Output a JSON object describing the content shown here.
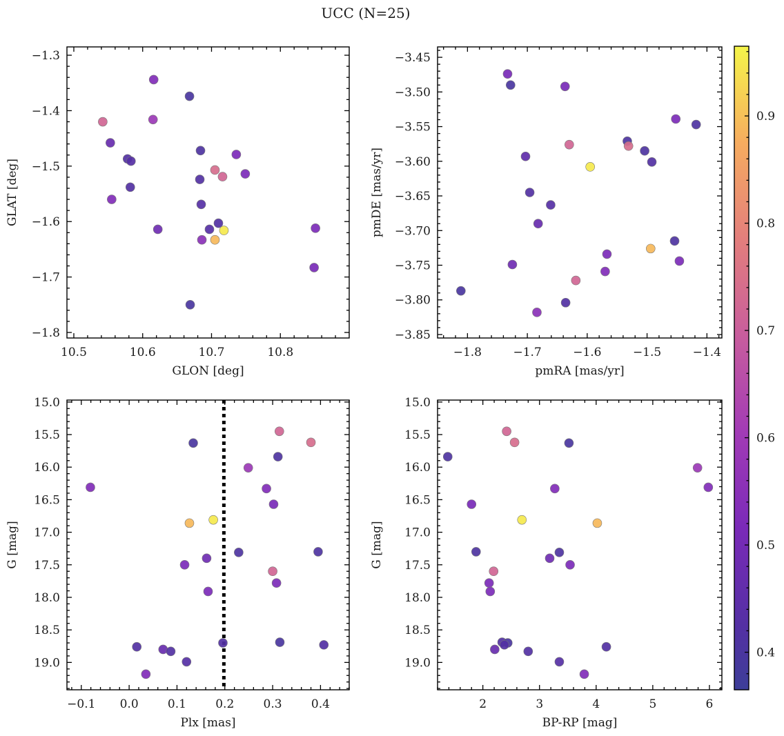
{
  "chart_data": [
    {
      "type": "scatter",
      "panel": "top-left",
      "xlabel": "GLON [deg]",
      "ylabel": "GLAT [deg]",
      "xlim": [
        10.49,
        10.9
      ],
      "ylim": [
        -1.81,
        -1.285
      ],
      "xticks": [
        10.5,
        10.6,
        10.7,
        10.8
      ],
      "xtick_labels": [
        "10.5",
        "10.6",
        "10.7",
        "10.8"
      ],
      "yticks": [
        -1.8,
        -1.7,
        -1.6,
        -1.5,
        -1.4,
        -1.3
      ],
      "ytick_labels": [
        "−1.8",
        "−1.7",
        "−1.6",
        "−1.5",
        "−1.4",
        "−1.3"
      ],
      "points": [
        {
          "x": 10.542,
          "y": -1.42,
          "c": 0.72
        },
        {
          "x": 10.553,
          "y": -1.458,
          "c": 0.47
        },
        {
          "x": 10.555,
          "y": -1.56,
          "c": 0.53
        },
        {
          "x": 10.578,
          "y": -1.487,
          "c": 0.42
        },
        {
          "x": 10.583,
          "y": -1.491,
          "c": 0.43
        },
        {
          "x": 10.582,
          "y": -1.538,
          "c": 0.42
        },
        {
          "x": 10.616,
          "y": -1.344,
          "c": 0.53
        },
        {
          "x": 10.615,
          "y": -1.416,
          "c": 0.59
        },
        {
          "x": 10.622,
          "y": -1.614,
          "c": 0.49
        },
        {
          "x": 10.668,
          "y": -1.374,
          "c": 0.4
        },
        {
          "x": 10.669,
          "y": -1.75,
          "c": 0.4
        },
        {
          "x": 10.684,
          "y": -1.472,
          "c": 0.41
        },
        {
          "x": 10.683,
          "y": -1.524,
          "c": 0.42
        },
        {
          "x": 10.685,
          "y": -1.569,
          "c": 0.43
        },
        {
          "x": 10.686,
          "y": -1.633,
          "c": 0.55
        },
        {
          "x": 10.697,
          "y": -1.614,
          "c": 0.43
        },
        {
          "x": 10.705,
          "y": -1.507,
          "c": 0.74
        },
        {
          "x": 10.716,
          "y": -1.519,
          "c": 0.72
        },
        {
          "x": 10.71,
          "y": -1.603,
          "c": 0.42
        },
        {
          "x": 10.705,
          "y": -1.633,
          "c": 0.89
        },
        {
          "x": 10.718,
          "y": -1.616,
          "c": 0.95
        },
        {
          "x": 10.736,
          "y": -1.479,
          "c": 0.52
        },
        {
          "x": 10.749,
          "y": -1.514,
          "c": 0.52
        },
        {
          "x": 10.851,
          "y": -1.612,
          "c": 0.52
        },
        {
          "x": 10.849,
          "y": -1.683,
          "c": 0.51
        }
      ]
    },
    {
      "type": "scatter",
      "panel": "top-right",
      "xlabel": "pmRA [mas/yr]",
      "ylabel": "pmDE [mas/yr]",
      "xlim": [
        -1.85,
        -1.375
      ],
      "ylim": [
        -3.855,
        -3.435
      ],
      "xticks": [
        -1.8,
        -1.7,
        -1.6,
        -1.5,
        -1.4
      ],
      "xtick_labels": [
        "−1.8",
        "−1.7",
        "−1.6",
        "−1.5",
        "−1.4"
      ],
      "yticks": [
        -3.85,
        -3.8,
        -3.75,
        -3.7,
        -3.65,
        -3.6,
        -3.55,
        -3.5,
        -3.45
      ],
      "ytick_labels": [
        "−3.85",
        "−3.80",
        "−3.75",
        "−3.70",
        "−3.65",
        "−3.60",
        "−3.55",
        "−3.50",
        "−3.45"
      ],
      "points": [
        {
          "x": -1.733,
          "y": -3.474,
          "c": 0.51
        },
        {
          "x": -1.728,
          "y": -3.49,
          "c": 0.4
        },
        {
          "x": -1.637,
          "y": -3.492,
          "c": 0.51
        },
        {
          "x": -1.452,
          "y": -3.539,
          "c": 0.52
        },
        {
          "x": -1.418,
          "y": -3.547,
          "c": 0.41
        },
        {
          "x": -1.533,
          "y": -3.571,
          "c": 0.41
        },
        {
          "x": -1.63,
          "y": -3.576,
          "c": 0.72
        },
        {
          "x": -1.531,
          "y": -3.578,
          "c": 0.74
        },
        {
          "x": -1.504,
          "y": -3.585,
          "c": 0.41
        },
        {
          "x": -1.703,
          "y": -3.593,
          "c": 0.45
        },
        {
          "x": -1.492,
          "y": -3.601,
          "c": 0.42
        },
        {
          "x": -1.595,
          "y": -3.608,
          "c": 0.95
        },
        {
          "x": -1.696,
          "y": -3.645,
          "c": 0.42
        },
        {
          "x": -1.661,
          "y": -3.663,
          "c": 0.43
        },
        {
          "x": -1.682,
          "y": -3.69,
          "c": 0.47
        },
        {
          "x": -1.454,
          "y": -3.715,
          "c": 0.41
        },
        {
          "x": -1.494,
          "y": -3.726,
          "c": 0.89
        },
        {
          "x": -1.567,
          "y": -3.734,
          "c": 0.52
        },
        {
          "x": -1.725,
          "y": -3.749,
          "c": 0.49
        },
        {
          "x": -1.446,
          "y": -3.744,
          "c": 0.52
        },
        {
          "x": -1.57,
          "y": -3.759,
          "c": 0.53
        },
        {
          "x": -1.619,
          "y": -3.772,
          "c": 0.72
        },
        {
          "x": -1.811,
          "y": -3.787,
          "c": 0.4
        },
        {
          "x": -1.636,
          "y": -3.804,
          "c": 0.42
        },
        {
          "x": -1.684,
          "y": -3.818,
          "c": 0.55
        }
      ]
    },
    {
      "type": "scatter",
      "panel": "bottom-left",
      "xlabel": "Plx [mas]",
      "ylabel": "G [mag]",
      "xlim": [
        -0.13,
        0.46
      ],
      "ylim": [
        19.42,
        14.97
      ],
      "xticks": [
        -0.1,
        0.0,
        0.1,
        0.2,
        0.3,
        0.4
      ],
      "xtick_labels": [
        "−0.1",
        "0.0",
        "0.1",
        "0.2",
        "0.3",
        "0.4"
      ],
      "yticks": [
        15.0,
        15.5,
        16.0,
        16.5,
        17.0,
        17.5,
        18.0,
        18.5,
        19.0
      ],
      "ytick_labels": [
        "15.0",
        "15.5",
        "16.0",
        "16.5",
        "17.0",
        "17.5",
        "18.0",
        "18.5",
        "19.0"
      ],
      "vline": {
        "x": 0.198,
        "style": "dotted"
      },
      "points": [
        {
          "x": 0.314,
          "y": 15.45,
          "c": 0.72
        },
        {
          "x": 0.38,
          "y": 15.62,
          "c": 0.74
        },
        {
          "x": 0.134,
          "y": 15.63,
          "c": 0.4
        },
        {
          "x": 0.311,
          "y": 15.84,
          "c": 0.41
        },
        {
          "x": 0.249,
          "y": 16.01,
          "c": 0.59
        },
        {
          "x": -0.081,
          "y": 16.31,
          "c": 0.53
        },
        {
          "x": 0.287,
          "y": 16.33,
          "c": 0.53
        },
        {
          "x": 0.302,
          "y": 16.57,
          "c": 0.51
        },
        {
          "x": 0.176,
          "y": 16.81,
          "c": 0.95
        },
        {
          "x": 0.126,
          "y": 16.86,
          "c": 0.89
        },
        {
          "x": 0.229,
          "y": 17.31,
          "c": 0.41
        },
        {
          "x": 0.395,
          "y": 17.3,
          "c": 0.41
        },
        {
          "x": 0.162,
          "y": 17.4,
          "c": 0.49
        },
        {
          "x": 0.116,
          "y": 17.5,
          "c": 0.52
        },
        {
          "x": 0.3,
          "y": 17.6,
          "c": 0.72
        },
        {
          "x": 0.308,
          "y": 17.78,
          "c": 0.52
        },
        {
          "x": 0.165,
          "y": 17.91,
          "c": 0.52
        },
        {
          "x": 0.196,
          "y": 18.7,
          "c": 0.42
        },
        {
          "x": 0.315,
          "y": 18.69,
          "c": 0.4
        },
        {
          "x": 0.407,
          "y": 18.73,
          "c": 0.42
        },
        {
          "x": 0.016,
          "y": 18.76,
          "c": 0.42
        },
        {
          "x": 0.071,
          "y": 18.8,
          "c": 0.47
        },
        {
          "x": 0.087,
          "y": 18.83,
          "c": 0.42
        },
        {
          "x": 0.12,
          "y": 18.99,
          "c": 0.43
        },
        {
          "x": 0.035,
          "y": 19.18,
          "c": 0.53
        }
      ]
    },
    {
      "type": "scatter",
      "panel": "bottom-right",
      "xlabel": "BP-RP [mag]",
      "ylabel": "G [mag]",
      "xlim": [
        1.2,
        6.22
      ],
      "ylim": [
        19.42,
        14.97
      ],
      "xticks": [
        2,
        3,
        4,
        5,
        6
      ],
      "xtick_labels": [
        "2",
        "3",
        "4",
        "5",
        "6"
      ],
      "yticks": [
        15.0,
        15.5,
        16.0,
        16.5,
        17.0,
        17.5,
        18.0,
        18.5,
        19.0
      ],
      "ytick_labels": [
        "15.0",
        "15.5",
        "16.0",
        "16.5",
        "17.0",
        "17.5",
        "18.0",
        "18.5",
        "19.0"
      ],
      "points": [
        {
          "x": 2.42,
          "y": 15.45,
          "c": 0.72
        },
        {
          "x": 2.56,
          "y": 15.62,
          "c": 0.74
        },
        {
          "x": 3.52,
          "y": 15.63,
          "c": 0.4
        },
        {
          "x": 1.38,
          "y": 15.84,
          "c": 0.41
        },
        {
          "x": 5.79,
          "y": 16.01,
          "c": 0.59
        },
        {
          "x": 5.98,
          "y": 16.31,
          "c": 0.53
        },
        {
          "x": 3.27,
          "y": 16.33,
          "c": 0.53
        },
        {
          "x": 1.8,
          "y": 16.57,
          "c": 0.51
        },
        {
          "x": 2.69,
          "y": 16.81,
          "c": 0.95
        },
        {
          "x": 4.02,
          "y": 16.86,
          "c": 0.89
        },
        {
          "x": 1.88,
          "y": 17.3,
          "c": 0.41
        },
        {
          "x": 3.35,
          "y": 17.31,
          "c": 0.41
        },
        {
          "x": 3.18,
          "y": 17.4,
          "c": 0.49
        },
        {
          "x": 3.54,
          "y": 17.5,
          "c": 0.52
        },
        {
          "x": 2.19,
          "y": 17.6,
          "c": 0.72
        },
        {
          "x": 2.11,
          "y": 17.78,
          "c": 0.52
        },
        {
          "x": 2.13,
          "y": 17.91,
          "c": 0.52
        },
        {
          "x": 2.34,
          "y": 18.69,
          "c": 0.42
        },
        {
          "x": 2.44,
          "y": 18.7,
          "c": 0.4
        },
        {
          "x": 2.38,
          "y": 18.73,
          "c": 0.42
        },
        {
          "x": 4.18,
          "y": 18.76,
          "c": 0.42
        },
        {
          "x": 2.21,
          "y": 18.8,
          "c": 0.47
        },
        {
          "x": 2.8,
          "y": 18.83,
          "c": 0.42
        },
        {
          "x": 3.35,
          "y": 18.99,
          "c": 0.43
        },
        {
          "x": 3.79,
          "y": 19.18,
          "c": 0.53
        }
      ]
    }
  ],
  "figure": {
    "title": "UCC (N=25)"
  },
  "colorbar": {
    "cmap": "plasma",
    "range": [
      0.365,
      0.965
    ],
    "ticks": [
      0.4,
      0.5,
      0.6,
      0.7,
      0.8,
      0.9
    ],
    "tick_labels": [
      "0.4",
      "0.5",
      "0.6",
      "0.7",
      "0.8",
      "0.9"
    ]
  }
}
